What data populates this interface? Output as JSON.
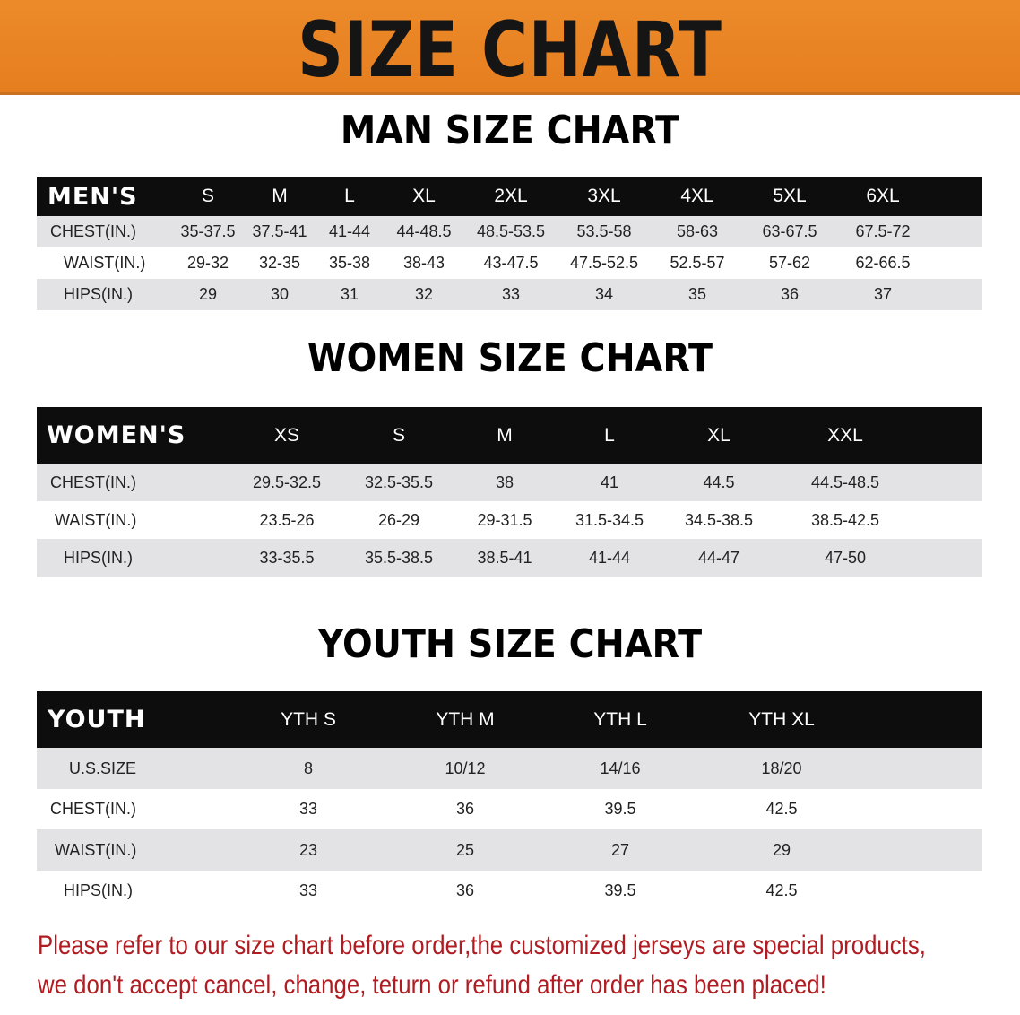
{
  "title": "SIZE CHART",
  "colors": {
    "banner": "#e8821f",
    "header_row": "#0d0d0d",
    "stripe": "#e3e3e5",
    "notice": "#b01c22"
  },
  "men": {
    "title": "MAN SIZE CHART",
    "header": [
      "MEN'S",
      "S",
      "M",
      "L",
      "XL",
      "2XL",
      "3XL",
      "4XL",
      "5XL",
      "6XL"
    ],
    "rows": [
      [
        "CHEST(IN.)",
        "35-37.5",
        "37.5-41",
        "41-44",
        "44-48.5",
        "48.5-53.5",
        "53.5-58",
        "58-63",
        "63-67.5",
        "67.5-72"
      ],
      [
        "WAIST(IN.)",
        "29-32",
        "32-35",
        "35-38",
        "38-43",
        "43-47.5",
        "47.5-52.5",
        "52.5-57",
        "57-62",
        "62-66.5"
      ],
      [
        "HIPS(IN.)",
        "29",
        "30",
        "31",
        "32",
        "33",
        "34",
        "35",
        "36",
        "37"
      ]
    ]
  },
  "women": {
    "title": "WOMEN SIZE CHART",
    "header": [
      "WOMEN'S",
      "XS",
      "S",
      "M",
      "L",
      "XL",
      "XXL"
    ],
    "rows": [
      [
        "CHEST(IN.)",
        "29.5-32.5",
        "32.5-35.5",
        "38",
        "41",
        "44.5",
        "44.5-48.5"
      ],
      [
        "WAIST(IN.)",
        "23.5-26",
        "26-29",
        "29-31.5",
        "31.5-34.5",
        "34.5-38.5",
        "38.5-42.5"
      ],
      [
        "HIPS(IN.)",
        "33-35.5",
        "35.5-38.5",
        "38.5-41",
        "41-44",
        "44-47",
        "47-50"
      ]
    ]
  },
  "youth": {
    "title": "YOUTH SIZE CHART",
    "header": [
      "YOUTH",
      "YTH S",
      "YTH M",
      "YTH L",
      "YTH XL"
    ],
    "rows": [
      [
        "U.S.SIZE",
        "8",
        "10/12",
        "14/16",
        "18/20"
      ],
      [
        "CHEST(IN.)",
        "33",
        "36",
        "39.5",
        "42.5"
      ],
      [
        "WAIST(IN.)",
        "23",
        "25",
        "27",
        "29"
      ],
      [
        "HIPS(IN.)",
        "33",
        "36",
        "39.5",
        "42.5"
      ]
    ]
  },
  "notice": {
    "line1": "Please refer to our size chart before order,the customized jerseys are special products,",
    "line2": "we don't accept cancel, change, teturn or refund after order has been placed!"
  }
}
